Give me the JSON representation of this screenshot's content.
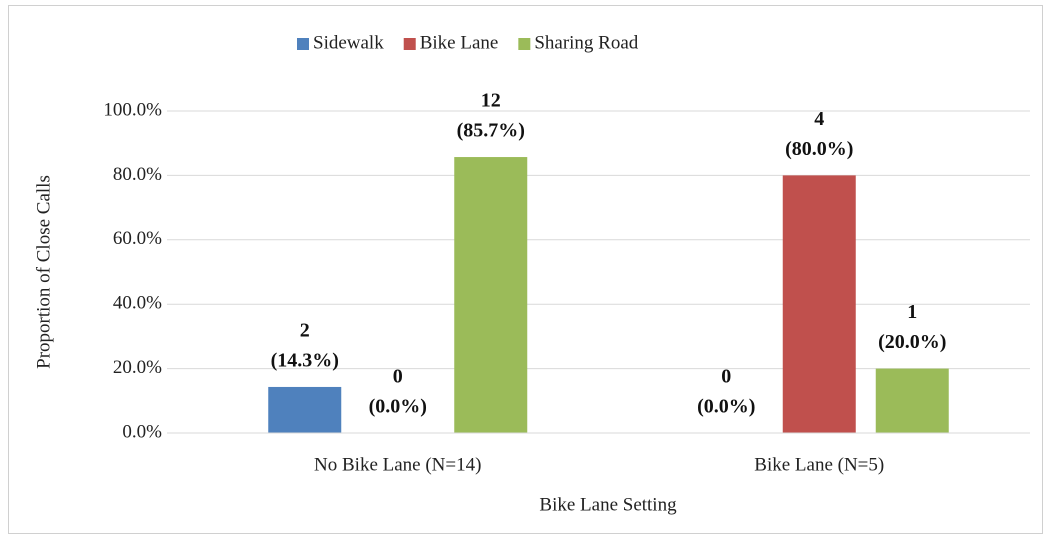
{
  "chart_data": {
    "type": "bar",
    "x_label": "Bike Lane Setting",
    "y_label": "Proportion of Close Calls",
    "categories": [
      "No Bike Lane (N=14)",
      "Bike Lane (N=5)"
    ],
    "series": [
      {
        "name": "Sidewalk",
        "color": "#4f81bd",
        "values": [
          14.3,
          0
        ],
        "value_labels": [
          [
            "2",
            "(14.3%)"
          ],
          [
            "0",
            "(0.0%)"
          ]
        ]
      },
      {
        "name": "Bike Lane",
        "color": "#c0504d",
        "values": [
          0,
          80.0
        ],
        "value_labels": [
          [
            "0",
            "(0.0%)"
          ],
          [
            "4",
            "(80.0%)"
          ]
        ]
      },
      {
        "name": "Sharing Road",
        "color": "#9bbb59",
        "values": [
          85.7,
          20.0
        ],
        "value_labels": [
          [
            "12",
            "(85.7%)"
          ],
          [
            "1",
            "(20.0%)"
          ]
        ]
      }
    ],
    "ylim": [
      0,
      100
    ],
    "yticks": [
      {
        "value": 0,
        "label": "0.0%"
      },
      {
        "value": 20,
        "label": "20.0%"
      },
      {
        "value": 40,
        "label": "40.0%"
      },
      {
        "value": 60,
        "label": "60.0%"
      },
      {
        "value": 80,
        "label": "80.0%"
      },
      {
        "value": 100,
        "label": "100.0%"
      }
    ],
    "grid": true,
    "legend": "top"
  }
}
